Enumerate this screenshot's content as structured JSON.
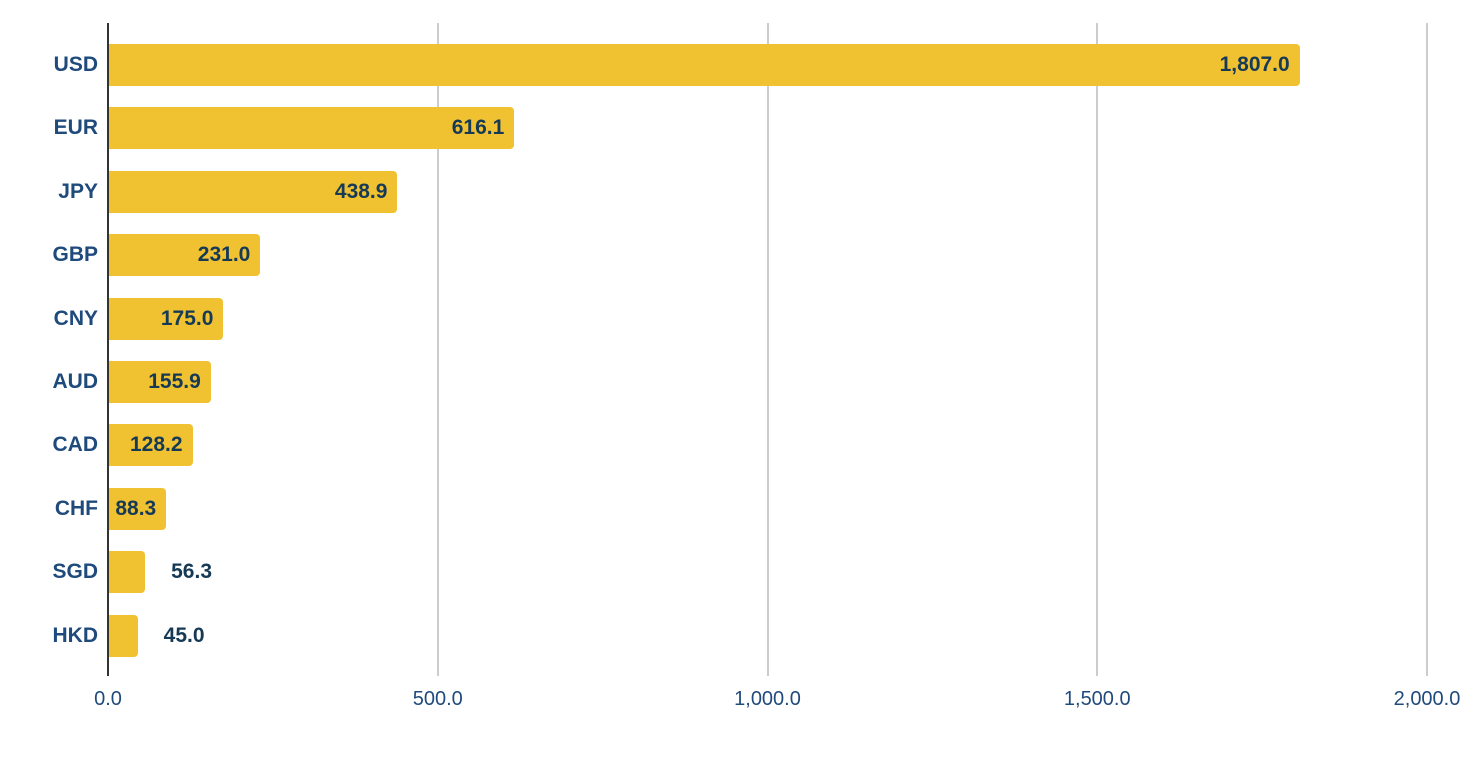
{
  "chart_data": {
    "type": "bar",
    "orientation": "horizontal",
    "title": "",
    "xlabel": "",
    "ylabel": "",
    "categories": [
      "USD",
      "EUR",
      "JPY",
      "GBP",
      "CNY",
      "AUD",
      "CAD",
      "CHF",
      "SGD",
      "HKD"
    ],
    "values": [
      1807.0,
      616.1,
      438.9,
      231.0,
      175.0,
      155.9,
      128.2,
      88.3,
      56.3,
      45.0
    ],
    "value_labels": [
      "1,807.0",
      "616.1",
      "438.9",
      "231.0",
      "175.0",
      "155.9",
      "128.2",
      "88.3",
      "56.3",
      "45.0"
    ],
    "xlim": [
      0,
      2000
    ],
    "x_ticks": [
      0,
      500,
      1000,
      1500,
      2000
    ],
    "x_tick_labels": [
      "0.0",
      "500.0",
      "1,000.0",
      "1,500.0",
      "2,000.0"
    ],
    "grid": "vertical",
    "legend": "none",
    "colors": {
      "bar": "#f0c232",
      "label": "#1f4a7c",
      "value_label": "#163a55",
      "grid": "#cccccc",
      "axis": "#333333"
    }
  }
}
